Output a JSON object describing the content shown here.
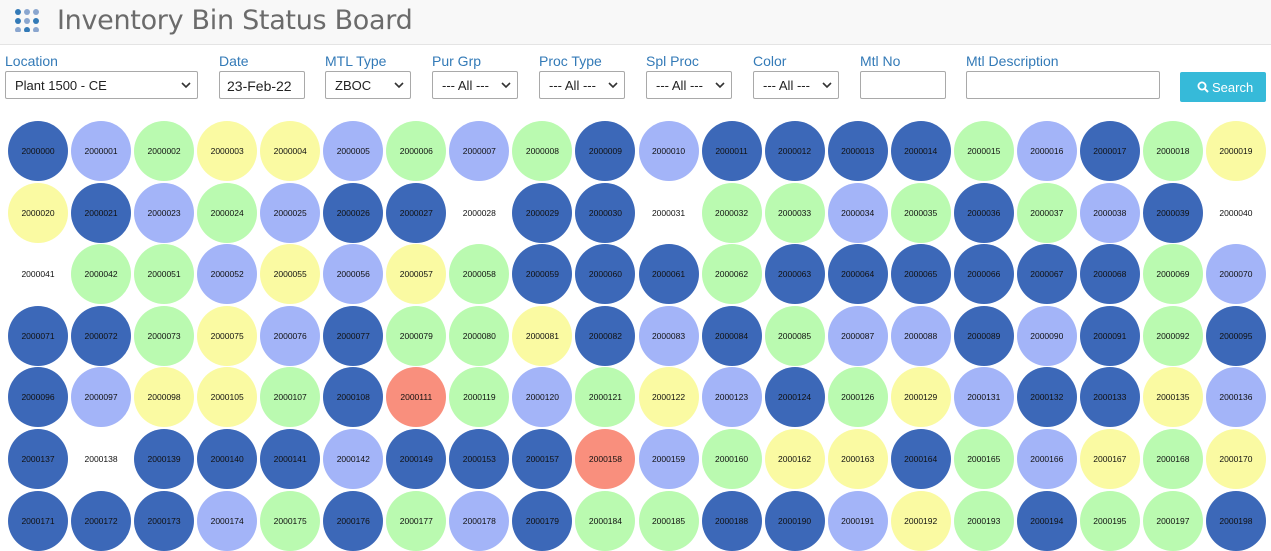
{
  "header": {
    "title": "Inventory Bin Status Board",
    "icon": "grid-dots-icon"
  },
  "filters": {
    "location": {
      "label": "Location",
      "value": "Plant 1500 - CE"
    },
    "date": {
      "label": "Date",
      "value": "23-Feb-22"
    },
    "mtl_type": {
      "label": "MTL Type",
      "value": "ZBOC"
    },
    "pur_grp": {
      "label": "Pur Grp",
      "value": "--- All ---"
    },
    "proc_type": {
      "label": "Proc Type",
      "value": "--- All ---"
    },
    "spl_proc": {
      "label": "Spl Proc",
      "value": "--- All ---"
    },
    "color": {
      "label": "Color",
      "value": "--- All ---"
    },
    "mtl_no": {
      "label": "Mtl No",
      "value": ""
    },
    "mtl_description": {
      "label": "Mtl Description",
      "value": ""
    }
  },
  "search_button": {
    "label": "Search",
    "icon": "search-icon"
  },
  "status_colors": {
    "D": "#3c68b8",
    "L": "#a3b4f8",
    "G": "#bafab0",
    "Y": "#fafaa2",
    "R": "#f98f7d",
    "N": "transparent"
  },
  "bins": [
    [
      [
        "2000000",
        "D"
      ],
      [
        "2000001",
        "L"
      ],
      [
        "2000002",
        "G"
      ],
      [
        "2000003",
        "Y"
      ],
      [
        "2000004",
        "Y"
      ],
      [
        "2000005",
        "L"
      ],
      [
        "2000006",
        "G"
      ],
      [
        "2000007",
        "L"
      ],
      [
        "2000008",
        "G"
      ],
      [
        "2000009",
        "D"
      ],
      [
        "2000010",
        "L"
      ],
      [
        "2000011",
        "D"
      ],
      [
        "2000012",
        "D"
      ],
      [
        "2000013",
        "D"
      ],
      [
        "2000014",
        "D"
      ],
      [
        "2000015",
        "G"
      ],
      [
        "2000016",
        "L"
      ],
      [
        "2000017",
        "D"
      ],
      [
        "2000018",
        "G"
      ],
      [
        "2000019",
        "Y"
      ]
    ],
    [
      [
        "2000020",
        "Y"
      ],
      [
        "2000021",
        "D"
      ],
      [
        "2000023",
        "L"
      ],
      [
        "2000024",
        "G"
      ],
      [
        "2000025",
        "L"
      ],
      [
        "2000026",
        "D"
      ],
      [
        "2000027",
        "D"
      ],
      [
        "2000028",
        "N"
      ],
      [
        "2000029",
        "D"
      ],
      [
        "2000030",
        "D"
      ],
      [
        "2000031",
        "N"
      ],
      [
        "2000032",
        "G"
      ],
      [
        "2000033",
        "G"
      ],
      [
        "2000034",
        "L"
      ],
      [
        "2000035",
        "G"
      ],
      [
        "2000036",
        "D"
      ],
      [
        "2000037",
        "G"
      ],
      [
        "2000038",
        "L"
      ],
      [
        "2000039",
        "D"
      ],
      [
        "2000040",
        "N"
      ]
    ],
    [
      [
        "2000041",
        "N"
      ],
      [
        "2000042",
        "G"
      ],
      [
        "2000051",
        "G"
      ],
      [
        "2000052",
        "L"
      ],
      [
        "2000055",
        "Y"
      ],
      [
        "2000056",
        "L"
      ],
      [
        "2000057",
        "Y"
      ],
      [
        "2000058",
        "G"
      ],
      [
        "2000059",
        "D"
      ],
      [
        "2000060",
        "D"
      ],
      [
        "2000061",
        "D"
      ],
      [
        "2000062",
        "G"
      ],
      [
        "2000063",
        "D"
      ],
      [
        "2000064",
        "D"
      ],
      [
        "2000065",
        "D"
      ],
      [
        "2000066",
        "D"
      ],
      [
        "2000067",
        "D"
      ],
      [
        "2000068",
        "D"
      ],
      [
        "2000069",
        "G"
      ],
      [
        "2000070",
        "L"
      ]
    ],
    [
      [
        "2000071",
        "D"
      ],
      [
        "2000072",
        "D"
      ],
      [
        "2000073",
        "G"
      ],
      [
        "2000075",
        "Y"
      ],
      [
        "2000076",
        "L"
      ],
      [
        "2000077",
        "D"
      ],
      [
        "2000079",
        "G"
      ],
      [
        "2000080",
        "G"
      ],
      [
        "2000081",
        "Y"
      ],
      [
        "2000082",
        "D"
      ],
      [
        "2000083",
        "L"
      ],
      [
        "2000084",
        "D"
      ],
      [
        "2000085",
        "G"
      ],
      [
        "2000087",
        "L"
      ],
      [
        "2000088",
        "L"
      ],
      [
        "2000089",
        "D"
      ],
      [
        "2000090",
        "L"
      ],
      [
        "2000091",
        "D"
      ],
      [
        "2000092",
        "G"
      ],
      [
        "2000095",
        "D"
      ]
    ],
    [
      [
        "2000096",
        "D"
      ],
      [
        "2000097",
        "L"
      ],
      [
        "2000098",
        "Y"
      ],
      [
        "2000105",
        "Y"
      ],
      [
        "2000107",
        "G"
      ],
      [
        "2000108",
        "D"
      ],
      [
        "2000111",
        "R"
      ],
      [
        "2000119",
        "G"
      ],
      [
        "2000120",
        "L"
      ],
      [
        "2000121",
        "G"
      ],
      [
        "2000122",
        "Y"
      ],
      [
        "2000123",
        "L"
      ],
      [
        "2000124",
        "D"
      ],
      [
        "2000126",
        "G"
      ],
      [
        "2000129",
        "Y"
      ],
      [
        "2000131",
        "L"
      ],
      [
        "2000132",
        "D"
      ],
      [
        "2000133",
        "D"
      ],
      [
        "2000135",
        "Y"
      ],
      [
        "2000136",
        "L"
      ]
    ],
    [
      [
        "2000137",
        "D"
      ],
      [
        "2000138",
        "N"
      ],
      [
        "2000139",
        "D"
      ],
      [
        "2000140",
        "D"
      ],
      [
        "2000141",
        "D"
      ],
      [
        "2000142",
        "L"
      ],
      [
        "2000149",
        "D"
      ],
      [
        "2000153",
        "D"
      ],
      [
        "2000157",
        "D"
      ],
      [
        "2000158",
        "R"
      ],
      [
        "2000159",
        "L"
      ],
      [
        "2000160",
        "G"
      ],
      [
        "2000162",
        "Y"
      ],
      [
        "2000163",
        "Y"
      ],
      [
        "2000164",
        "D"
      ],
      [
        "2000165",
        "G"
      ],
      [
        "2000166",
        "L"
      ],
      [
        "2000167",
        "Y"
      ],
      [
        "2000168",
        "G"
      ],
      [
        "2000170",
        "Y"
      ]
    ],
    [
      [
        "2000171",
        "D"
      ],
      [
        "2000172",
        "D"
      ],
      [
        "2000173",
        "D"
      ],
      [
        "2000174",
        "L"
      ],
      [
        "2000175",
        "G"
      ],
      [
        "2000176",
        "D"
      ],
      [
        "2000177",
        "G"
      ],
      [
        "2000178",
        "L"
      ],
      [
        "2000179",
        "D"
      ],
      [
        "2000184",
        "G"
      ],
      [
        "2000185",
        "G"
      ],
      [
        "2000188",
        "D"
      ],
      [
        "2000190",
        "D"
      ],
      [
        "2000191",
        "L"
      ],
      [
        "2000192",
        "Y"
      ],
      [
        "2000193",
        "G"
      ],
      [
        "2000194",
        "D"
      ],
      [
        "2000195",
        "G"
      ],
      [
        "2000197",
        "G"
      ],
      [
        "2000198",
        "D"
      ]
    ]
  ]
}
